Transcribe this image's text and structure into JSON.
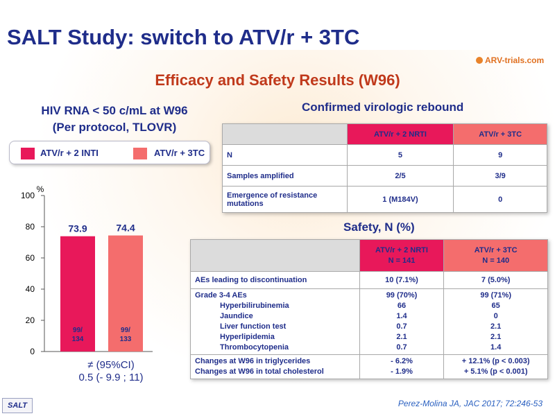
{
  "header": {
    "title": "SALT Study: switch to ATV/r + 3TC",
    "logo": "ARV-trials.com",
    "subtitle": "Efficacy and Safety Results (W96)"
  },
  "efficacy": {
    "title_line1": "HIV RNA < 50 c/mL at W96",
    "title_line2": "(Per protocol, TLOVR)",
    "legend": [
      {
        "label": "ATV/r + 2 INTI",
        "color": "#e8185a"
      },
      {
        "label": "ATV/r + 3TC",
        "color": "#f46d6d"
      }
    ],
    "ci_line1": "≠ (95%CI)",
    "ci_line2": "0.5 (- 9.9 ; 11)"
  },
  "chart_data": {
    "type": "bar",
    "categories": [
      "ATV/r + 2 INTI",
      "ATV/r + 3TC"
    ],
    "values": [
      73.9,
      74.4
    ],
    "inner_labels": [
      [
        "99/",
        "134"
      ],
      [
        "99/",
        "133"
      ]
    ],
    "colors": [
      "#e8185a",
      "#f46d6d"
    ],
    "ylabel": "%",
    "yticks": [
      0,
      20,
      40,
      60,
      80,
      100
    ],
    "ylim": [
      0,
      100
    ]
  },
  "virologic": {
    "title": "Confirmed virologic rebound",
    "headers": [
      "",
      "ATV/r + 2 NRTI",
      "ATV/r + 3TC"
    ],
    "rows": [
      [
        "N",
        "5",
        "9"
      ],
      [
        "Samples amplified",
        "2/5",
        "3/9"
      ],
      [
        "Emergence of resistance mutations",
        "1 (M184V)",
        "0"
      ]
    ]
  },
  "safety": {
    "title": "Safety, N (%)",
    "col1_line1": "ATV/r + 2 NRTI",
    "col1_line2": "N = 141",
    "col2_line1": "ATV/r + 3TC",
    "col2_line2": "N = 140",
    "row_ae": {
      "label": "AEs leading to discontinuation",
      "v1": "10 (7.1%)",
      "v2": "7 (5.0%)"
    },
    "grade": {
      "labels": [
        "Grade 3-4 AEs",
        "Hyperbilirubinemia",
        "Jaundice",
        "Liver function test",
        "Hyperlipidemia",
        "Thrombocytopenia"
      ],
      "v1": [
        "99 (70%)",
        "66",
        "1.4",
        "0.7",
        "2.1",
        "0.7"
      ],
      "v2": [
        "99 (71%)",
        "65",
        "0",
        "2.1",
        "2.1",
        "1.4"
      ]
    },
    "changes": {
      "labels": [
        "Changes at W96 in triglycerides",
        "Changes at W96 in total cholesterol"
      ],
      "v1": [
        "- 6.2%",
        "- 1.9%"
      ],
      "v2": [
        "+ 12.1% (p < 0.003)",
        "+ 5.1% (p < 0.001)"
      ]
    }
  },
  "footer": {
    "citation": "Perez-Molina JA, JAC 2017; 72:246-53",
    "badge": "SALT"
  }
}
